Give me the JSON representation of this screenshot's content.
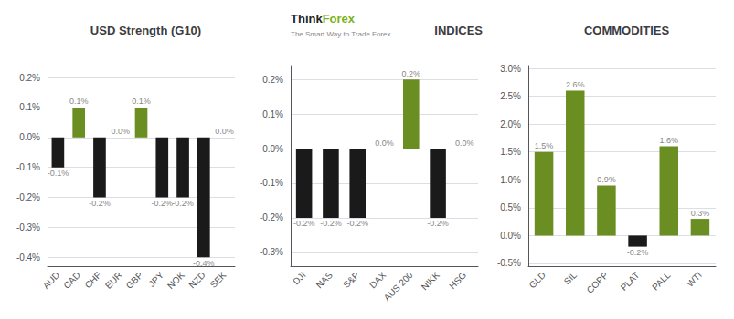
{
  "chart_data": [
    {
      "type": "bar",
      "title": "USD Strength (G10)",
      "categories": [
        "AUD",
        "CAD",
        "CHF",
        "EUR",
        "GBP",
        "JPY",
        "NOK",
        "NZD",
        "SEK"
      ],
      "values": [
        -0.1,
        0.1,
        -0.2,
        0.0,
        0.1,
        -0.2,
        -0.2,
        -0.4,
        0.0
      ],
      "value_labels": [
        "-0.1%",
        "0.1%",
        "-0.2%",
        "0.0%",
        "0.1%",
        "-0.2%",
        "-0.2%",
        "-0.4%",
        "0.0%"
      ],
      "colors": [
        "#1a1a1a",
        "#6b8e23",
        "#1a1a1a",
        "#1a1a1a",
        "#6b8e23",
        "#1a1a1a",
        "#1a1a1a",
        "#1a1a1a",
        "#6b8e23"
      ],
      "ylim": [
        -0.43,
        0.24
      ],
      "yticks": [
        {
          "value": -0.4,
          "label": "-0.4%"
        },
        {
          "value": -0.3,
          "label": "-0.3%"
        },
        {
          "value": -0.2,
          "label": "-0.2%"
        },
        {
          "value": -0.1,
          "label": "-0.1%"
        },
        {
          "value": 0.0,
          "label": "0.0%"
        },
        {
          "value": 0.1,
          "label": "0.1%"
        },
        {
          "value": 0.2,
          "label": "0.2%"
        }
      ],
      "grid": true,
      "data_labels": true
    },
    {
      "type": "bar",
      "title": "INDICES",
      "annotations": [
        "Think",
        "Forex",
        "The Smart Way to Trade Forex"
      ],
      "categories": [
        "DJI",
        "NAS",
        "S&P",
        "DAX",
        "AUS 200",
        "NIKK",
        "HSG"
      ],
      "values": [
        -0.2,
        -0.2,
        -0.2,
        0.0,
        0.2,
        -0.2,
        0.0
      ],
      "value_labels": [
        "-0.2%",
        "-0.2%",
        "-0.2%",
        "0.0%",
        "0.2%",
        "-0.2%",
        "0.0%"
      ],
      "colors": [
        "#1a1a1a",
        "#1a1a1a",
        "#1a1a1a",
        "#1a1a1a",
        "#6b8e23",
        "#1a1a1a",
        "#1a1a1a"
      ],
      "ylim": [
        -0.34,
        0.24
      ],
      "yticks": [
        {
          "value": -0.3,
          "label": "-0.3%"
        },
        {
          "value": -0.2,
          "label": "-0.2%"
        },
        {
          "value": -0.1,
          "label": "-0.1%"
        },
        {
          "value": 0.0,
          "label": "0.0%"
        },
        {
          "value": 0.1,
          "label": "0.1%"
        },
        {
          "value": 0.2,
          "label": "0.2%"
        }
      ],
      "grid": true,
      "data_labels": true
    },
    {
      "type": "bar",
      "title": "COMMODITIES",
      "categories": [
        "GLD",
        "SIL",
        "COPP",
        "PLAT",
        "PALL",
        "WTI"
      ],
      "values": [
        1.5,
        2.6,
        0.9,
        -0.2,
        1.6,
        0.3
      ],
      "value_labels": [
        "1.5%",
        "2.6%",
        "0.9%",
        "-0.2%",
        "1.6%",
        "0.3%"
      ],
      "colors": [
        "#6b8e23",
        "#6b8e23",
        "#6b8e23",
        "#1a1a1a",
        "#6b8e23",
        "#6b8e23"
      ],
      "ylim": [
        -0.55,
        3.05
      ],
      "yticks": [
        {
          "value": -0.5,
          "label": "-0.5%"
        },
        {
          "value": 0.0,
          "label": "0.0%"
        },
        {
          "value": 0.5,
          "label": "0.5%"
        },
        {
          "value": 1.0,
          "label": "1.0%"
        },
        {
          "value": 1.5,
          "label": "1.5%"
        },
        {
          "value": 2.0,
          "label": "2.0%"
        },
        {
          "value": 2.5,
          "label": "2.5%"
        },
        {
          "value": 3.0,
          "label": "3.0%"
        }
      ],
      "grid": true,
      "data_labels": true
    }
  ]
}
